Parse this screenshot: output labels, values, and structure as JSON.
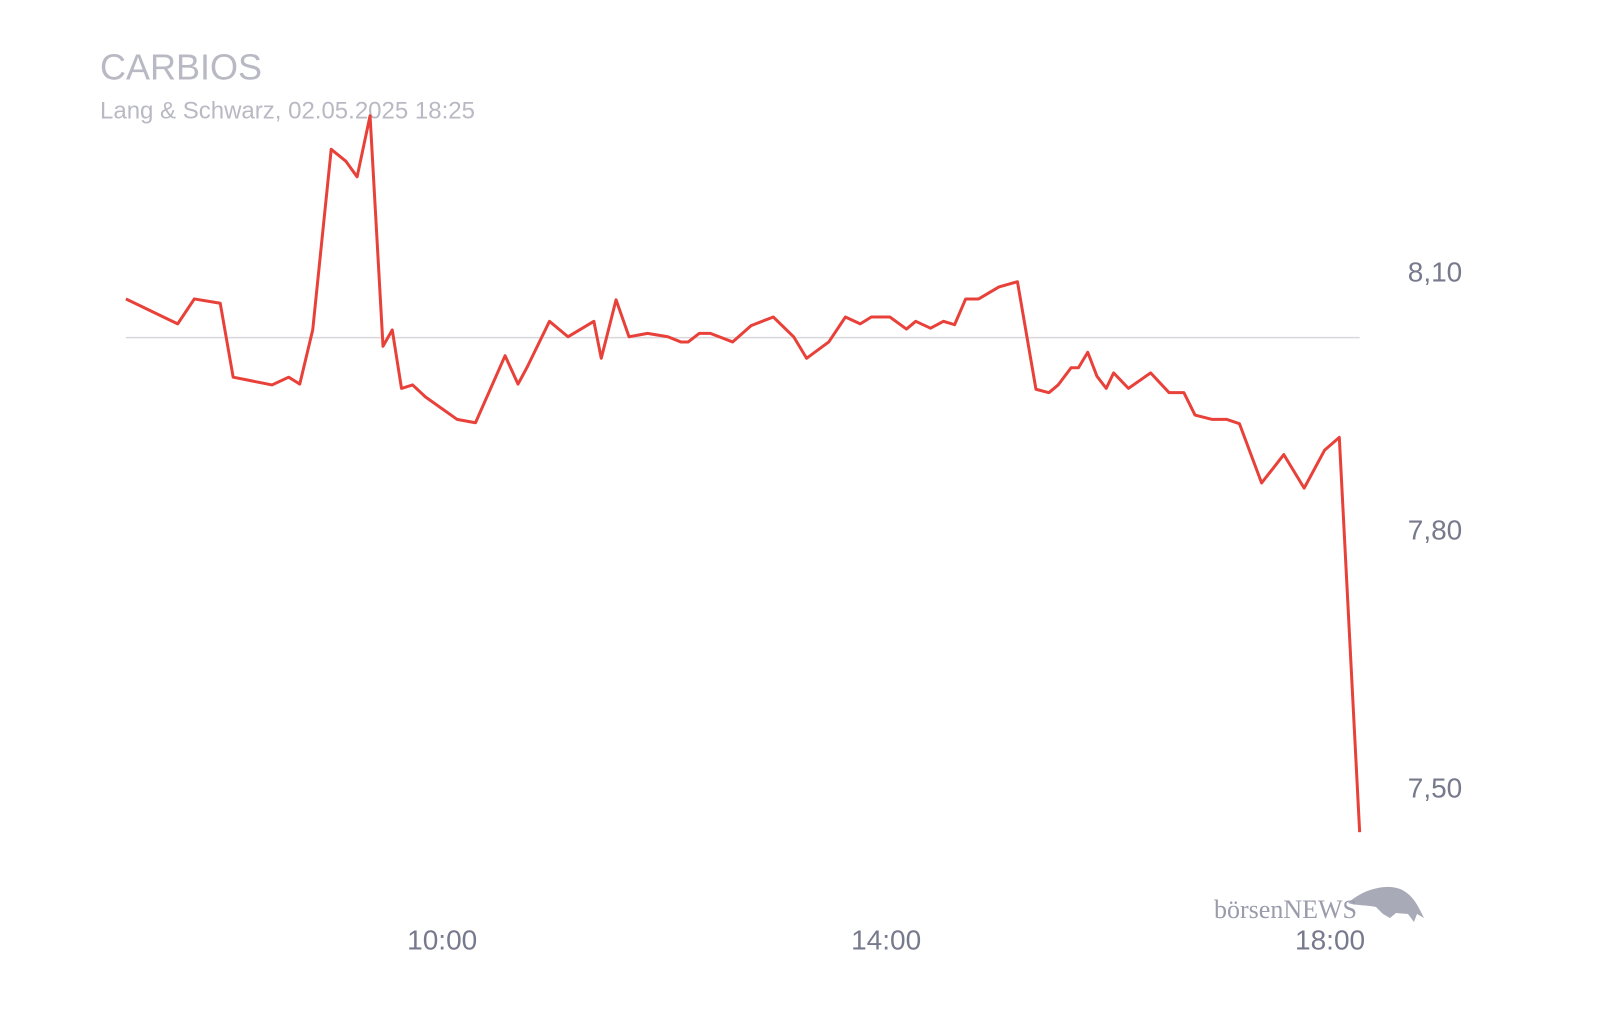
{
  "chart_data": {
    "type": "line",
    "title": "CARBIOS",
    "subtitle": "Lang & Schwarz, 02.05.2025 18:25",
    "logo": "börsenNEWS",
    "color": "#e8413a",
    "reference_value": 8.026,
    "x": [
      429,
      457,
      466,
      480,
      487,
      494,
      508,
      517,
      523,
      530,
      540,
      548,
      554,
      561,
      568,
      573,
      578,
      584,
      591,
      608,
      618,
      634,
      641,
      646,
      658,
      668,
      682,
      686,
      694,
      701,
      711,
      722,
      729,
      733,
      739,
      745,
      757,
      767,
      779,
      790,
      797,
      809,
      818,
      826,
      832,
      842,
      851,
      856,
      864,
      871,
      877,
      883,
      890,
      901,
      911,
      921,
      928,
      933,
      940,
      944,
      949,
      954,
      959,
      963,
      971,
      983,
      993,
      1001,
      1007,
      1016,
      1024,
      1031,
      1043,
      1055,
      1066,
      1077,
      1085,
      1096
    ],
    "values": [
      8.071,
      8.042,
      8.071,
      8.066,
      7.98,
      7.977,
      7.971,
      7.98,
      7.972,
      8.035,
      8.245,
      8.231,
      8.213,
      8.284,
      8.016,
      8.035,
      7.967,
      7.971,
      7.957,
      7.931,
      7.927,
      8.005,
      7.972,
      7.992,
      8.045,
      8.027,
      8.045,
      8.002,
      8.07,
      8.027,
      8.031,
      8.027,
      8.021,
      8.021,
      8.031,
      8.031,
      8.021,
      8.04,
      8.05,
      8.027,
      8.002,
      8.021,
      8.05,
      8.042,
      8.05,
      8.05,
      8.036,
      8.045,
      8.037,
      8.045,
      8.041,
      8.071,
      8.071,
      8.085,
      8.091,
      7.966,
      7.962,
      7.971,
      7.991,
      7.991,
      8.009,
      7.981,
      7.967,
      7.985,
      7.967,
      7.985,
      7.962,
      7.962,
      7.936,
      7.931,
      7.931,
      7.926,
      7.857,
      7.89,
      7.851,
      7.895,
      7.91,
      7.451
    ],
    "xlim": [
      415,
      1107
    ],
    "xticks": [
      {
        "value": 600,
        "label": "10:00"
      },
      {
        "value": 840,
        "label": "14:00"
      },
      {
        "value": 1080,
        "label": "18:00"
      }
    ],
    "ylim": [
      7.4,
      8.3
    ],
    "yticks": [
      {
        "value": 7.5,
        "label": "7,50"
      },
      {
        "value": 7.8,
        "label": "7,80"
      },
      {
        "value": 8.1,
        "label": "8,10"
      }
    ]
  }
}
